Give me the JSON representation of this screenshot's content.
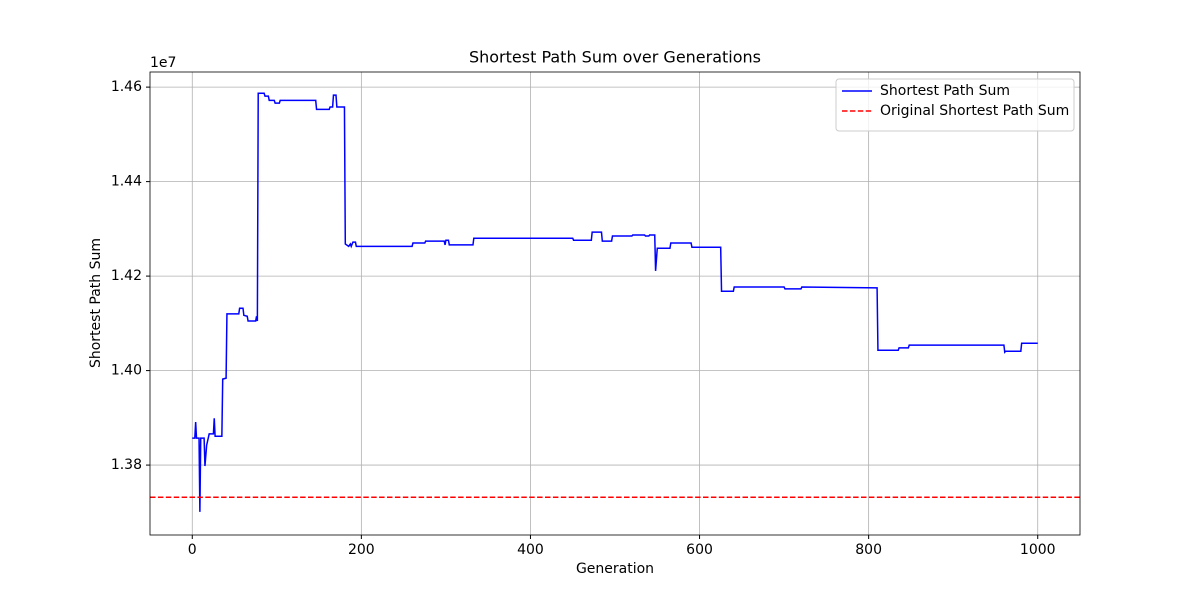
{
  "chart_data": {
    "type": "line",
    "title": "Shortest Path Sum over Generations",
    "x_label": "Generation",
    "y_label": "Shortest Path Sum",
    "y_offset_label": "1e7",
    "xlim": [
      -50,
      1050
    ],
    "xticks": [
      0,
      200,
      400,
      600,
      800,
      1000
    ],
    "ylim": [
      1.3652,
      1.4632
    ],
    "yticks": [
      1.38,
      {
        "value": 1.4,
        "label": "1.40"
      },
      1.42,
      1.44,
      1.46
    ],
    "grid": true,
    "legend": "upper right",
    "series": [
      {
        "name": "Shortest Path Sum",
        "color": "#0000ff",
        "x": [
          0,
          3,
          4,
          5,
          8,
          9,
          10,
          14,
          15,
          17,
          20,
          25,
          26,
          27,
          35,
          36,
          40,
          41,
          55,
          56,
          60,
          61,
          65,
          66,
          75,
          76,
          77,
          78,
          85,
          86,
          90,
          91,
          97,
          98,
          103,
          104,
          146,
          147,
          162,
          163,
          166,
          167,
          170,
          171,
          180,
          181,
          185,
          187,
          188,
          190,
          193,
          194,
          260,
          261,
          275,
          276,
          298,
          299,
          300,
          303,
          304,
          332,
          333,
          450,
          451,
          472,
          473,
          484,
          485,
          496,
          497,
          520,
          521,
          535,
          536,
          540,
          541,
          547,
          548,
          550,
          565,
          566,
          590,
          591,
          625,
          626,
          640,
          641,
          700,
          701,
          720,
          721,
          810,
          811,
          835,
          836,
          847,
          848,
          960,
          961,
          962,
          980,
          981,
          1000
        ],
        "values": [
          1.3857,
          1.3857,
          1.3891,
          1.3857,
          1.3857,
          1.3701,
          1.3857,
          1.3857,
          1.3798,
          1.3842,
          1.3866,
          1.3866,
          1.3899,
          1.3861,
          1.3861,
          1.3982,
          1.3984,
          1.412,
          1.412,
          1.4132,
          1.4132,
          1.4117,
          1.4115,
          1.4105,
          1.4105,
          1.4115,
          1.4105,
          1.4587,
          1.4587,
          1.4581,
          1.4581,
          1.4572,
          1.4572,
          1.4566,
          1.4566,
          1.4572,
          1.4572,
          1.4553,
          1.4553,
          1.4558,
          1.4558,
          1.4583,
          1.4583,
          1.4558,
          1.4558,
          1.4268,
          1.4263,
          1.4268,
          1.4263,
          1.4272,
          1.4272,
          1.4263,
          1.4263,
          1.427,
          1.427,
          1.4274,
          1.4274,
          1.4266,
          1.4276,
          1.4276,
          1.4266,
          1.4266,
          1.428,
          1.428,
          1.4276,
          1.4276,
          1.4293,
          1.4293,
          1.4274,
          1.4274,
          1.4285,
          1.4285,
          1.4287,
          1.4287,
          1.4285,
          1.4285,
          1.4287,
          1.4287,
          1.4211,
          1.4259,
          1.4259,
          1.427,
          1.427,
          1.4261,
          1.4261,
          1.4168,
          1.4168,
          1.4177,
          1.4177,
          1.4173,
          1.4173,
          1.4177,
          1.4175,
          1.4043,
          1.4043,
          1.4048,
          1.4048,
          1.4054,
          1.4054,
          1.4039,
          1.4041,
          1.4041,
          1.4058,
          1.4058
        ]
      }
    ],
    "reference": {
      "name": "Original Shortest Path Sum",
      "color": "#ff0000",
      "style": "dashed",
      "value": 1.3732
    }
  }
}
